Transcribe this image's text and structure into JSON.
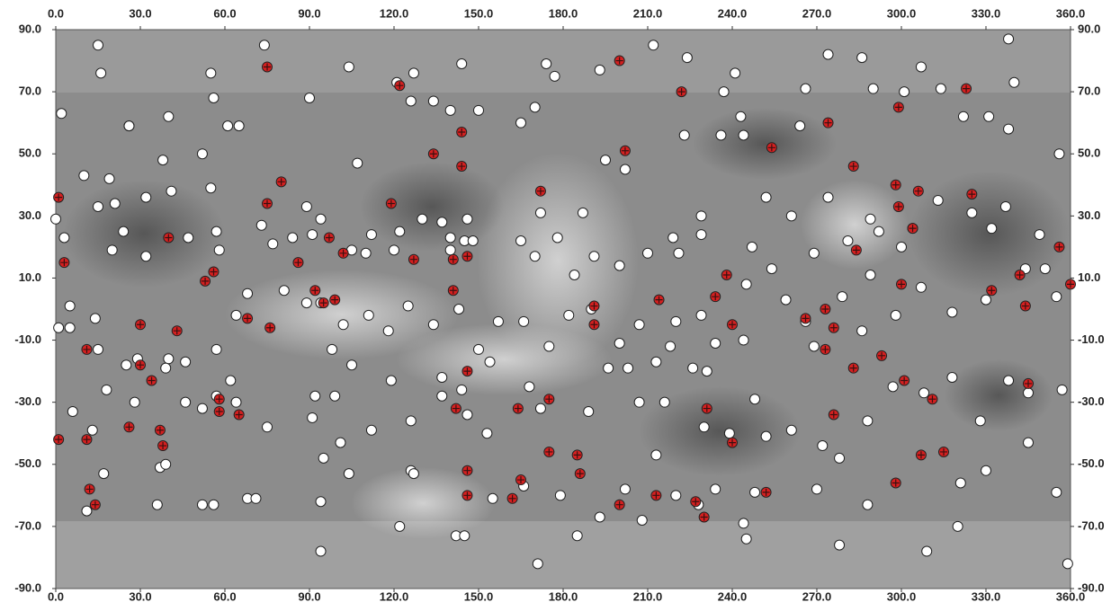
{
  "chart_data": {
    "type": "scatter",
    "xlim": [
      0,
      360
    ],
    "ylim": [
      -90,
      90
    ],
    "xticks": [
      {
        "value": 0,
        "label": "0.0"
      },
      {
        "value": 30,
        "label": "30.0"
      },
      {
        "value": 60,
        "label": "60.0"
      },
      {
        "value": 90,
        "label": "90.0"
      },
      {
        "value": 120,
        "label": "120.0"
      },
      {
        "value": 150,
        "label": "150.0"
      },
      {
        "value": 180,
        "label": "180.0"
      },
      {
        "value": 210,
        "label": "210.0"
      },
      {
        "value": 240,
        "label": "240.0"
      },
      {
        "value": 270,
        "label": "270.0"
      },
      {
        "value": 300,
        "label": "300.0"
      },
      {
        "value": 330,
        "label": "330.0"
      },
      {
        "value": 360,
        "label": "360.0"
      }
    ],
    "yticks": [
      {
        "value": 90,
        "label": "90.0"
      },
      {
        "value": 70,
        "label": "70.0"
      },
      {
        "value": 50,
        "label": "50.0"
      },
      {
        "value": 30,
        "label": "30.0"
      },
      {
        "value": 10,
        "label": "10.0"
      },
      {
        "value": -10,
        "label": "-10.0"
      },
      {
        "value": -30,
        "label": "-30.0"
      },
      {
        "value": -50,
        "label": "-50.0"
      },
      {
        "value": -70,
        "label": "-70.0"
      },
      {
        "value": -90,
        "label": "-90.0"
      }
    ],
    "series": [
      {
        "color": "#ffffff",
        "marker": "circle",
        "x": [
          15,
          74,
          338,
          16,
          55,
          2,
          40,
          26,
          56,
          90,
          104,
          127,
          121,
          144,
          174,
          177,
          193,
          212,
          224,
          241,
          274,
          286,
          307,
          314,
          290,
          266,
          301,
          322,
          340,
          331,
          338,
          356,
          237,
          243,
          264,
          244,
          236,
          223,
          195,
          202,
          165,
          170,
          150,
          140,
          134,
          126,
          107,
          61,
          65,
          10,
          19,
          38,
          26,
          52,
          55,
          41,
          32,
          21,
          15,
          0,
          3,
          24,
          20,
          32,
          47,
          57,
          58,
          73,
          77,
          84,
          91,
          89,
          94,
          112,
          105,
          110,
          120,
          122,
          130,
          137,
          146,
          140,
          140,
          145,
          148,
          165,
          172,
          187,
          178,
          170,
          184,
          191,
          200,
          210,
          219,
          221,
          229,
          229,
          247,
          254,
          252,
          261,
          274,
          269,
          281,
          289,
          292,
          300,
          304,
          313,
          325,
          332,
          337,
          349,
          351,
          355,
          344,
          330,
          318,
          307,
          298,
          286,
          289,
          279,
          266,
          269,
          259,
          245,
          234,
          244,
          229,
          220,
          218,
          213,
          207,
          200,
          190,
          182,
          175,
          166,
          157,
          154,
          137,
          150,
          143,
          134,
          125,
          118,
          111,
          102,
          105,
          98,
          89,
          94,
          81,
          68,
          64,
          62,
          57,
          46,
          40,
          39,
          29,
          25,
          15,
          14,
          5,
          1,
          5,
          18,
          28,
          46,
          52,
          57,
          64,
          75,
          92,
          99,
          91,
          95,
          101,
          104,
          112,
          119,
          126,
          126,
          137,
          144,
          146,
          153,
          168,
          172,
          189,
          196,
          203,
          207,
          216,
          226,
          231,
          230,
          239,
          248,
          252,
          261,
          272,
          278,
          288,
          297,
          308,
          318,
          328,
          338,
          345,
          357,
          345,
          330,
          321,
          320,
          309,
          359,
          355,
          278,
          270,
          288,
          245,
          244,
          248,
          234,
          228,
          220,
          213,
          208,
          202,
          193,
          185,
          179,
          166,
          155,
          142,
          145,
          171,
          94,
          94,
          122,
          127,
          68,
          71,
          52,
          56,
          36,
          37,
          39,
          17,
          11,
          13,
          6
        ],
        "y": [
          85,
          85,
          87,
          76,
          76,
          63,
          62,
          59,
          68,
          68,
          78,
          76,
          73,
          79,
          79,
          75,
          77,
          85,
          81,
          76,
          82,
          81,
          78,
          71,
          71,
          71,
          70,
          62,
          73,
          62,
          58,
          50,
          70,
          62,
          59,
          56,
          56,
          56,
          48,
          45,
          60,
          65,
          64,
          64,
          67,
          67,
          47,
          59,
          59,
          43,
          42,
          48,
          59,
          50,
          39,
          38,
          36,
          34,
          33,
          29,
          23,
          25,
          19,
          17,
          23,
          25,
          19,
          27,
          21,
          23,
          24,
          33,
          29,
          24,
          19,
          18,
          19,
          25,
          29,
          28,
          29,
          23,
          19,
          22,
          22,
          22,
          31,
          31,
          23,
          17,
          11,
          17,
          14,
          18,
          23,
          18,
          30,
          24,
          20,
          13,
          36,
          30,
          36,
          18,
          22,
          29,
          25,
          20,
          26,
          35,
          31,
          26,
          33,
          24,
          13,
          4,
          13,
          3,
          -1,
          7,
          -2,
          -7,
          11,
          4,
          -4,
          -12,
          3,
          8,
          -11,
          -10,
          -2,
          -4,
          -12,
          -17,
          -5,
          -11,
          0,
          -2,
          -12,
          -4,
          -4,
          -17,
          -22,
          -13,
          0,
          -5,
          1,
          -7,
          -2,
          -5,
          -18,
          -13,
          2,
          2,
          6,
          5,
          -2,
          -23,
          -13,
          -17,
          -16,
          -19,
          -16,
          -18,
          -13,
          -3,
          1,
          -6,
          -6,
          -26,
          -30,
          -30,
          -32,
          -28,
          -30,
          -38,
          -28,
          -28,
          -35,
          -48,
          -43,
          -53,
          -39,
          -23,
          -36,
          -52,
          -28,
          -26,
          -34,
          -40,
          -25,
          -32,
          -33,
          -19,
          -19,
          -30,
          -30,
          -19,
          -20,
          -38,
          -40,
          -29,
          -41,
          -39,
          -44,
          -48,
          -36,
          -25,
          -27,
          -22,
          -36,
          -23,
          -27,
          -26,
          -43,
          -52,
          -56,
          -70,
          -78,
          -82,
          -59,
          -76,
          -58,
          -63,
          -74,
          -69,
          -59,
          -58,
          -63,
          -60,
          -47,
          -68,
          -58,
          -67,
          -73,
          -60,
          -57,
          -61,
          -73,
          -73,
          -82,
          -78,
          -62,
          -70,
          -53,
          -61,
          -61,
          -63,
          -63,
          -63,
          -51,
          -50,
          -53,
          -65,
          -39,
          -33
        ]
      },
      {
        "color": "#d42020",
        "marker": "cross",
        "x": [
          1,
          3,
          11,
          1,
          11,
          12,
          14,
          26,
          30,
          34,
          37,
          38,
          30,
          43,
          40,
          53,
          56,
          58,
          58,
          65,
          68,
          76,
          75,
          75,
          80,
          86,
          92,
          95,
          99,
          97,
          102,
          122,
          119,
          127,
          134,
          141,
          146,
          144,
          144,
          141,
          146,
          142,
          164,
          175,
          172,
          146,
          146,
          165,
          162,
          175,
          185,
          186,
          191,
          191,
          200,
          202,
          200,
          213,
          214,
          222,
          234,
          238,
          240,
          231,
          240,
          227,
          230,
          254,
          252,
          266,
          273,
          273,
          274,
          276,
          276,
          283,
          284,
          283,
          293,
          299,
          298,
          299,
          300,
          298,
          301,
          304,
          306,
          307,
          311,
          315,
          323,
          325,
          332,
          342,
          344,
          345,
          360,
          356
        ],
        "y": [
          36,
          15,
          -13,
          -42,
          -42,
          -58,
          -63,
          -38,
          -18,
          -23,
          -39,
          -44,
          -5,
          -7,
          23,
          9,
          12,
          -29,
          -33,
          -34,
          -3,
          -6,
          78,
          34,
          41,
          15,
          6,
          2,
          3,
          23,
          18,
          72,
          34,
          16,
          50,
          16,
          17,
          57,
          46,
          6,
          -20,
          -32,
          -32,
          -29,
          38,
          -52,
          -60,
          -55,
          -61,
          -46,
          -47,
          -53,
          -5,
          1,
          80,
          51,
          -63,
          -60,
          3,
          70,
          4,
          11,
          -5,
          -32,
          -43,
          -62,
          -67,
          52,
          -59,
          -3,
          0,
          -13,
          60,
          -6,
          -34,
          46,
          19,
          -19,
          -15,
          65,
          40,
          33,
          8,
          -56,
          -23,
          26,
          38,
          -47,
          -29,
          -46,
          71,
          37,
          6,
          11,
          1,
          -24,
          8,
          20
        ]
      }
    ]
  }
}
